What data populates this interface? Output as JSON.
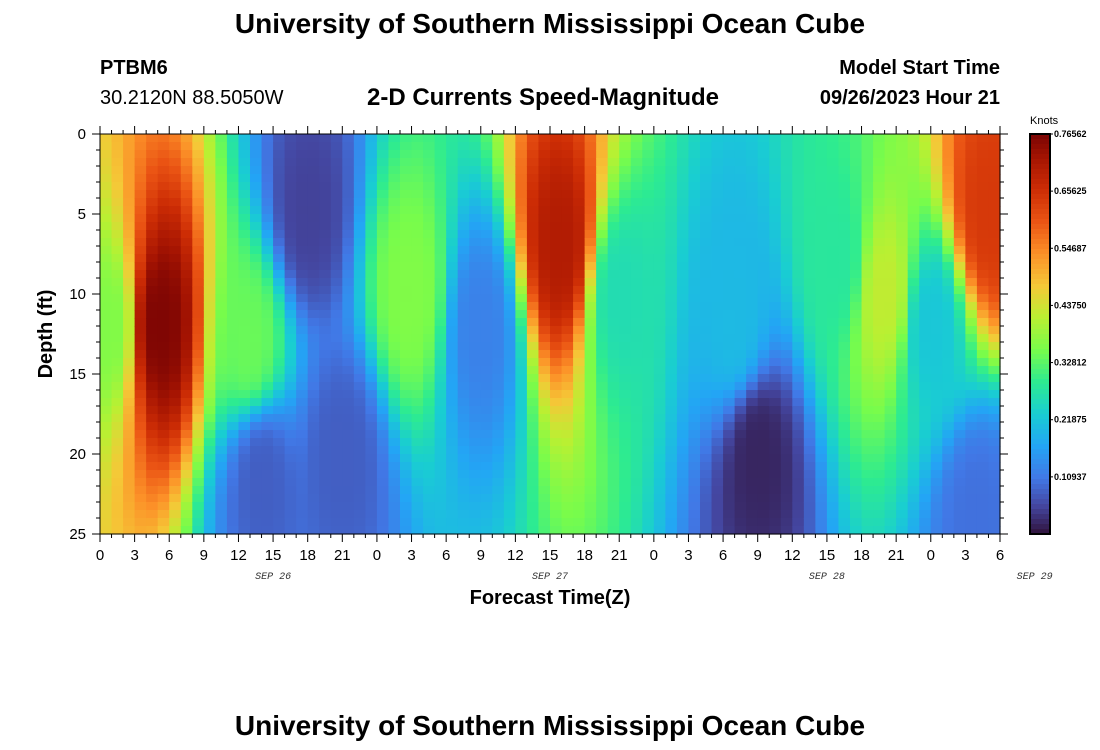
{
  "header": {
    "title": "University of Southern Mississippi Ocean Cube",
    "station": "PTBM6",
    "coords": "30.2120N  88.5050W",
    "subtitle": "2-D Currents Speed-Magnitude",
    "model_start_label": "Model Start Time",
    "model_start_value": "09/26/2023 Hour 21"
  },
  "footer": {
    "title": "University of Southern Mississippi Ocean Cube"
  },
  "chart_data": {
    "type": "heatmap",
    "title": "2-D Currents Speed-Magnitude",
    "xlabel": "Forecast Time(Z)",
    "ylabel": "Depth (ft)",
    "x_ticks": [
      "0",
      "3",
      "6",
      "9",
      "12",
      "15",
      "18",
      "21",
      "0",
      "3",
      "6",
      "9",
      "12",
      "15",
      "18",
      "21",
      "0",
      "3",
      "6",
      "9",
      "12",
      "15",
      "18",
      "21",
      "0",
      "3",
      "6"
    ],
    "date_labels": [
      {
        "label": "SEP 26",
        "hour": 15
      },
      {
        "label": "SEP 27",
        "hour": 39
      },
      {
        "label": "SEP 28",
        "hour": 63
      },
      {
        "label": "SEP 29",
        "hour": 81
      }
    ],
    "xlim": [
      0,
      78
    ],
    "ylim": [
      0,
      25
    ],
    "y_inverted": true,
    "y_ticks": [
      "0",
      "5",
      "10",
      "15",
      "20",
      "25"
    ],
    "colorbar": {
      "title": "Knots",
      "min": 0.0,
      "max": 0.7656,
      "tick_labels": [
        "0.76562",
        "0.65625",
        "0.54687",
        "0.43750",
        "0.32812",
        "0.21875",
        "0.10937"
      ],
      "tick_values": [
        0.76562,
        0.65625,
        0.54687,
        0.4375,
        0.32812,
        0.21875,
        0.10937
      ],
      "colormap": "turbo"
    },
    "field_features": [
      {
        "hour": 5,
        "depth": 12,
        "value": 0.76
      },
      {
        "hour": 1,
        "depth": 12,
        "value": 0.36
      },
      {
        "hour": 13,
        "depth": 13,
        "value": 0.34
      },
      {
        "hour": 18,
        "depth": 5,
        "value": 0.05
      },
      {
        "hour": 14,
        "depth": 21.5,
        "value": 0.08
      },
      {
        "hour": 21,
        "depth": 20,
        "value": 0.08
      },
      {
        "hour": 27,
        "depth": 10,
        "value": 0.36
      },
      {
        "hour": 33,
        "depth": 12,
        "value": 0.12
      },
      {
        "hour": 40,
        "depth": 7,
        "value": 0.7
      },
      {
        "hour": 45,
        "depth": 10,
        "value": 0.26
      },
      {
        "hour": 55,
        "depth": 12,
        "value": 0.2
      },
      {
        "hour": 57,
        "depth": 20,
        "value": 0.02
      },
      {
        "hour": 64,
        "depth": 8,
        "value": 0.28
      },
      {
        "hour": 68,
        "depth": 10,
        "value": 0.42
      },
      {
        "hour": 72,
        "depth": 12,
        "value": 0.22
      },
      {
        "hour": 77,
        "depth": 5,
        "value": 0.64
      },
      {
        "hour": 76,
        "depth": 24,
        "value": 0.1
      }
    ]
  }
}
